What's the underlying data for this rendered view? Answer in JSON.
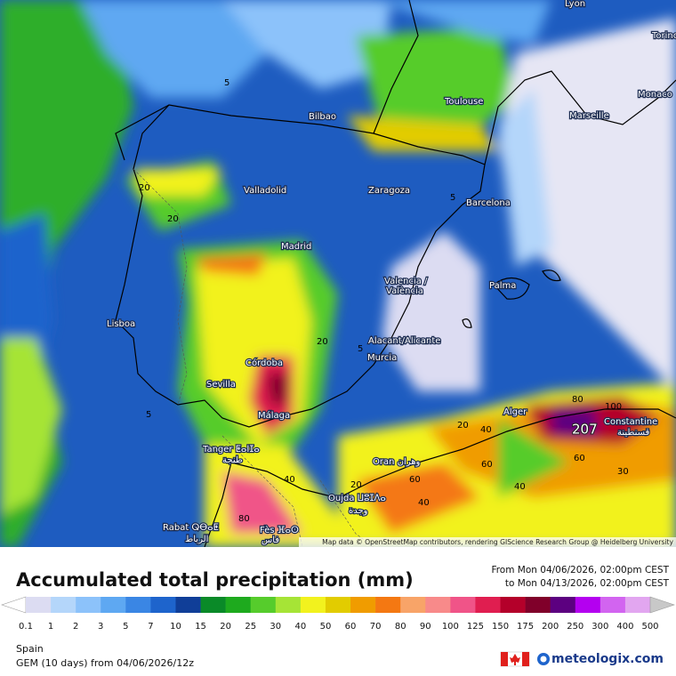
{
  "map": {
    "cities": [
      "Lyon",
      "Torino",
      "Monaco",
      "Toulouse",
      "Marseille",
      "Bilbao",
      "Zaragoza",
      "Valladolid",
      "Barcelona",
      "Madrid",
      "Palma",
      "Valencia /",
      "València",
      "Lisboa",
      "Alacant/Alicante",
      "Murcia",
      "Córdoba",
      "Sevilla",
      "Málaga",
      "Alger",
      "Constantine",
      "قسنطينة",
      "Tanger ⵟⴰⵏⵊⴰ",
      "طنجة",
      "Oran وهران",
      "Oujda ⵡⵓⵊⴷⴰ",
      "وجدة",
      "Rabat ⵕⴱⴰⵟ",
      "الرباط",
      "Fès ⴼⴰⵙ",
      "فاس"
    ],
    "contour_labels": [
      "5",
      "20",
      "20",
      "5",
      "20",
      "5",
      "5",
      "20",
      "40",
      "80",
      "100",
      "207",
      "60",
      "60",
      "40",
      "30",
      "40",
      "20",
      "60",
      "40",
      "80"
    ],
    "attribution": "Map data © OpenStreetMap contributors, rendering GIScience Research Group @ Heidelberg University"
  },
  "header": {
    "title": "Accumulated total precipitation (mm)",
    "from": "From Mon 04/06/2026, 02:00pm CEST",
    "to": "to Mon 04/13/2026, 02:00pm CEST"
  },
  "legend": {
    "ticks": [
      0.1,
      1,
      2,
      3,
      5,
      7,
      10,
      15,
      20,
      25,
      30,
      40,
      50,
      60,
      70,
      80,
      90,
      100,
      125,
      150,
      175,
      200,
      250,
      300,
      400,
      500
    ],
    "colors": [
      "#ffffff",
      "#dcdcf2",
      "#b4d6fa",
      "#8cc2fa",
      "#5ea8f2",
      "#3a86e4",
      "#1e64cc",
      "#103e98",
      "#0a8a28",
      "#1eaa1e",
      "#56cc2c",
      "#a6e436",
      "#f2f21e",
      "#e2cc00",
      "#f09c00",
      "#f47812",
      "#f8a468",
      "#f88a8a",
      "#f05488",
      "#e01e50",
      "#b4002a",
      "#80002a",
      "#5c0080",
      "#b400f0",
      "#d264f0",
      "#e2a6f0",
      "#f2dcf8",
      "#c8c8c8"
    ]
  },
  "footer": {
    "region": "Spain",
    "model": "GEM (10 days) from 04/06/2026/12z",
    "brand": "meteologix.com"
  }
}
